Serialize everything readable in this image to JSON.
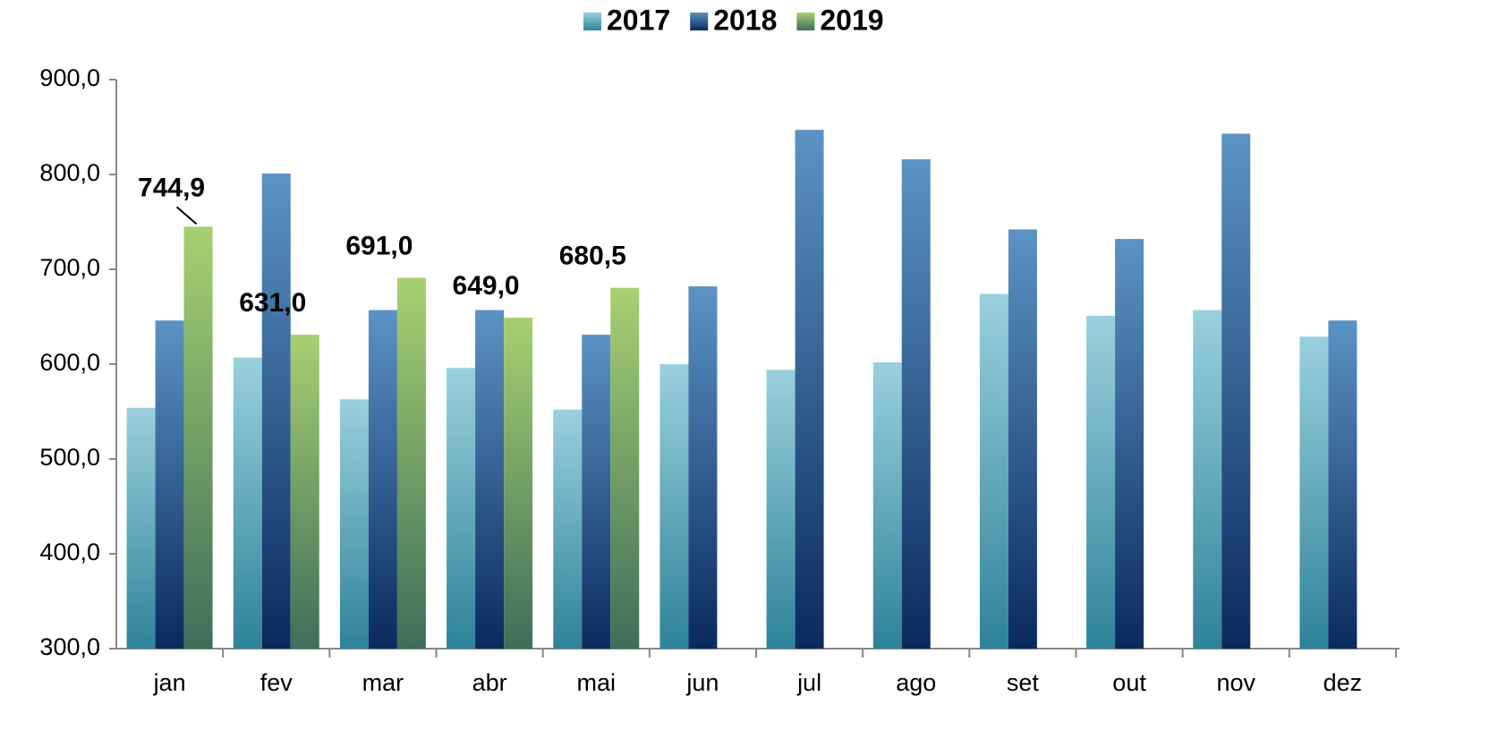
{
  "chart_data": {
    "type": "bar",
    "categories": [
      "jan",
      "fev",
      "mar",
      "abr",
      "mai",
      "jun",
      "jul",
      "ago",
      "set",
      "out",
      "nov",
      "dez"
    ],
    "series": [
      {
        "name": "2017",
        "color": "#9ad0de",
        "gradient_end": "#2e8399",
        "values": [
          554,
          607,
          563,
          596,
          552,
          600,
          594,
          602,
          674,
          651,
          657,
          629
        ]
      },
      {
        "name": "2018",
        "color": "#5b93c4",
        "gradient_end": "#0b2a5e",
        "values": [
          646,
          801,
          657,
          657,
          631,
          682,
          847,
          816,
          742,
          732,
          843,
          646
        ]
      },
      {
        "name": "2019",
        "color": "#a8d070",
        "gradient_end": "#3e6e5a",
        "values": [
          744.9,
          631.0,
          691.0,
          649.0,
          680.5,
          null,
          null,
          null,
          null,
          null,
          null,
          null
        ],
        "value_labels": [
          "744,9",
          "631,0",
          "691,0",
          "649,0",
          "680,5",
          null,
          null,
          null,
          null,
          null,
          null,
          null
        ]
      }
    ],
    "ylim": [
      300,
      900
    ],
    "yticks": [
      {
        "value": 300,
        "label": "300,0"
      },
      {
        "value": 400,
        "label": "400,0"
      },
      {
        "value": 500,
        "label": "500,0"
      },
      {
        "value": 600,
        "label": "600,0"
      },
      {
        "value": 700,
        "label": "700,0"
      },
      {
        "value": 800,
        "label": "800,0"
      },
      {
        "value": 900,
        "label": "900,0"
      }
    ],
    "grid": false,
    "legend": "top"
  }
}
